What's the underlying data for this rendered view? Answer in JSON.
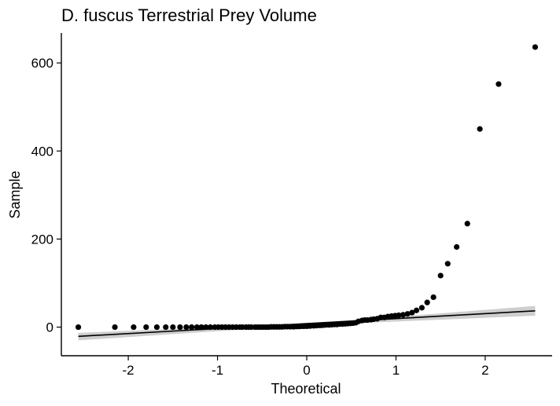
{
  "chart_data": {
    "type": "scatter",
    "title": "D. fuscus Terrestrial Prey Volume",
    "xlabel": "Theoretical",
    "ylabel": "Sample",
    "xlim": [
      -2.75,
      2.75
    ],
    "ylim": [
      -65,
      668
    ],
    "x_ticks": [
      -2,
      -1,
      0,
      1,
      2
    ],
    "y_ticks": [
      0,
      200,
      400,
      600
    ],
    "x_tick_labels": [
      "-2",
      "-1",
      "0",
      "1",
      "2"
    ],
    "y_tick_labels": [
      "0",
      "200",
      "400",
      "600"
    ],
    "grid": false,
    "legend": "none",
    "colors": {
      "points": "#000000",
      "line": "#000000",
      "band": "#bdbdbd"
    },
    "points": [
      [
        -2.56,
        0
      ],
      [
        -2.15,
        0
      ],
      [
        -1.94,
        0
      ],
      [
        -1.8,
        0
      ],
      [
        -1.68,
        0
      ],
      [
        -1.58,
        0
      ],
      [
        -1.5,
        0
      ],
      [
        -1.42,
        0
      ],
      [
        -1.35,
        0
      ],
      [
        -1.29,
        0
      ],
      [
        -1.23,
        0
      ],
      [
        -1.18,
        0
      ],
      [
        -1.13,
        0
      ],
      [
        -1.08,
        0
      ],
      [
        -1.03,
        0
      ],
      [
        -0.99,
        0
      ],
      [
        -0.95,
        0
      ],
      [
        -0.91,
        0
      ],
      [
        -0.87,
        0
      ],
      [
        -0.83,
        0
      ],
      [
        -0.79,
        0
      ],
      [
        -0.75,
        0
      ],
      [
        -0.72,
        0
      ],
      [
        -0.68,
        0
      ],
      [
        -0.65,
        0
      ],
      [
        -0.62,
        0
      ],
      [
        -0.58,
        0
      ],
      [
        -0.55,
        0
      ],
      [
        -0.52,
        0
      ],
      [
        -0.49,
        0
      ],
      [
        -0.46,
        0
      ],
      [
        -0.43,
        0
      ],
      [
        -0.4,
        0.5
      ],
      [
        -0.37,
        0.5
      ],
      [
        -0.34,
        0.5
      ],
      [
        -0.31,
        0.5
      ],
      [
        -0.28,
        0.5
      ],
      [
        -0.25,
        1
      ],
      [
        -0.22,
        1
      ],
      [
        -0.19,
        1
      ],
      [
        -0.16,
        1
      ],
      [
        -0.14,
        1
      ],
      [
        -0.11,
        1.5
      ],
      [
        -0.08,
        1.5
      ],
      [
        -0.05,
        2
      ],
      [
        -0.03,
        2
      ],
      [
        0.0,
        2
      ],
      [
        0.03,
        2.5
      ],
      [
        0.05,
        3
      ],
      [
        0.08,
        3
      ],
      [
        0.11,
        3.5
      ],
      [
        0.14,
        4
      ],
      [
        0.16,
        4
      ],
      [
        0.19,
        4.5
      ],
      [
        0.22,
        5
      ],
      [
        0.25,
        5
      ],
      [
        0.28,
        5.5
      ],
      [
        0.31,
        6
      ],
      [
        0.34,
        6
      ],
      [
        0.37,
        7
      ],
      [
        0.4,
        7
      ],
      [
        0.43,
        7.5
      ],
      [
        0.46,
        8
      ],
      [
        0.49,
        8.5
      ],
      [
        0.52,
        9
      ],
      [
        0.55,
        10
      ],
      [
        0.58,
        13
      ],
      [
        0.62,
        15
      ],
      [
        0.65,
        16
      ],
      [
        0.68,
        16
      ],
      [
        0.72,
        17
      ],
      [
        0.75,
        18
      ],
      [
        0.79,
        19
      ],
      [
        0.83,
        22
      ],
      [
        0.87,
        22
      ],
      [
        0.91,
        24
      ],
      [
        0.95,
        25
      ],
      [
        0.99,
        26
      ],
      [
        1.03,
        27
      ],
      [
        1.08,
        28
      ],
      [
        1.13,
        30
      ],
      [
        1.18,
        33
      ],
      [
        1.23,
        38
      ],
      [
        1.29,
        44
      ],
      [
        1.35,
        56
      ],
      [
        1.42,
        68
      ],
      [
        1.5,
        117
      ],
      [
        1.58,
        144
      ],
      [
        1.68,
        182
      ],
      [
        1.8,
        235
      ],
      [
        1.94,
        450
      ],
      [
        2.15,
        552
      ],
      [
        2.56,
        636
      ]
    ],
    "fit_line": [
      [
        -2.56,
        -21
      ],
      [
        2.56,
        37
      ]
    ],
    "confidence_band": {
      "upper": [
        [
          -2.56,
          -13
        ],
        [
          0,
          8
        ],
        [
          2.56,
          48
        ]
      ],
      "lower": [
        [
          -2.56,
          -30
        ],
        [
          0,
          4
        ],
        [
          2.56,
          26
        ]
      ]
    }
  }
}
